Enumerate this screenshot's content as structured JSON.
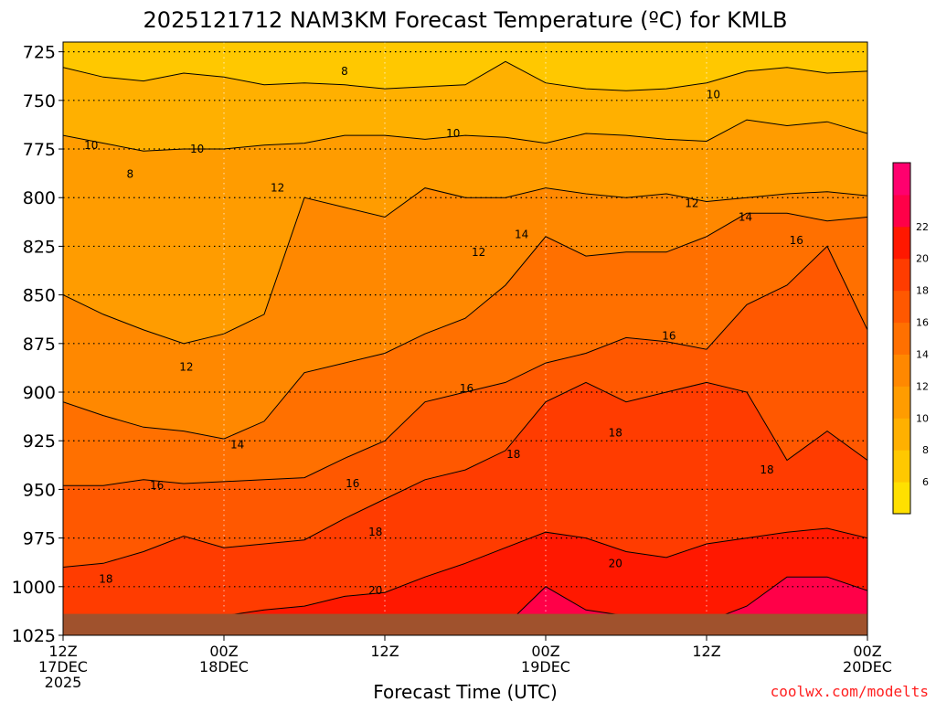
{
  "chart_data": {
    "type": "heatmap",
    "title": "2025121712 NAM3KM Forecast Temperature (ºC) for KMLB",
    "xlabel": "Forecast Time (UTC)",
    "ylabel": "",
    "credit": "coolwx.com/modelts",
    "y_ticks": [
      725,
      750,
      775,
      800,
      825,
      850,
      875,
      900,
      925,
      950,
      975,
      1000,
      1025
    ],
    "ylim": [
      1025,
      720
    ],
    "x_hours": [
      0,
      60
    ],
    "x_ticks": [
      {
        "hour": 0,
        "l1": "12Z",
        "l2": "17DEC",
        "l3": "2025"
      },
      {
        "hour": 12,
        "l1": "00Z",
        "l2": "18DEC",
        "l3": ""
      },
      {
        "hour": 24,
        "l1": "12Z",
        "l2": "",
        "l3": ""
      },
      {
        "hour": 36,
        "l1": "00Z",
        "l2": "19DEC",
        "l3": ""
      },
      {
        "hour": 48,
        "l1": "12Z",
        "l2": "",
        "l3": ""
      },
      {
        "hour": 60,
        "l1": "00Z",
        "l2": "20DEC",
        "l3": ""
      }
    ],
    "colorbar": {
      "levels": [
        4,
        6,
        8,
        10,
        12,
        14,
        16,
        18,
        20,
        22,
        24
      ],
      "labels": [
        6,
        8,
        10,
        12,
        14,
        16,
        18,
        20,
        22
      ],
      "colors": [
        "#ffe000",
        "#ffc800",
        "#ffb000",
        "#ff9c00",
        "#ff8800",
        "#ff7000",
        "#ff5800",
        "#ff3c00",
        "#ff1800",
        "#ff0048",
        "#ff006e"
      ]
    },
    "surface_color": "#a0522d",
    "surface_pressure": 1014,
    "series": [
      {
        "name": "8",
        "x": [
          0,
          3,
          6,
          9,
          12,
          15,
          18,
          21,
          24,
          27,
          30,
          33,
          36,
          39,
          42,
          45,
          48,
          51,
          54,
          57,
          60
        ],
        "y": [
          733,
          738,
          740,
          736,
          738,
          742,
          741,
          742,
          744,
          743,
          742,
          730,
          741,
          744,
          745,
          744,
          741,
          735,
          733,
          736,
          735
        ]
      },
      {
        "name": "10",
        "x": [
          0,
          3,
          6,
          9,
          12,
          15,
          18,
          21,
          24,
          27,
          30,
          33,
          36,
          39,
          42,
          45,
          48,
          51,
          54,
          57,
          60
        ],
        "y": [
          768,
          772,
          776,
          775,
          775,
          773,
          772,
          768,
          768,
          770,
          768,
          769,
          772,
          767,
          768,
          770,
          771,
          760,
          763,
          761,
          767
        ]
      },
      {
        "name": "12",
        "x": [
          0,
          3,
          6,
          9,
          12,
          15,
          18,
          21,
          24,
          27,
          30,
          33,
          36,
          39,
          42,
          45,
          48,
          51,
          54,
          57,
          60
        ],
        "y": [
          850,
          860,
          868,
          875,
          870,
          860,
          800,
          805,
          810,
          795,
          800,
          800,
          795,
          798,
          800,
          798,
          802,
          800,
          798,
          797,
          799
        ]
      },
      {
        "name": "14",
        "x": [
          0,
          3,
          6,
          9,
          12,
          15,
          18,
          21,
          24,
          27,
          30,
          33,
          36,
          39,
          42,
          45,
          48,
          51,
          54,
          57,
          60
        ],
        "y": [
          905,
          912,
          918,
          920,
          924,
          915,
          890,
          885,
          880,
          870,
          862,
          845,
          820,
          830,
          828,
          828,
          820,
          808,
          808,
          812,
          810
        ]
      },
      {
        "name": "16",
        "x": [
          0,
          3,
          6,
          9,
          12,
          15,
          18,
          21,
          24,
          27,
          30,
          33,
          36,
          39,
          42,
          45,
          48,
          51,
          54,
          57,
          60
        ],
        "y": [
          948,
          948,
          945,
          947,
          946,
          945,
          944,
          934,
          925,
          905,
          900,
          895,
          885,
          880,
          872,
          874,
          878,
          855,
          845,
          825,
          868
        ]
      },
      {
        "name": "18",
        "x": [
          0,
          3,
          6,
          9,
          12,
          15,
          18,
          21,
          24,
          27,
          30,
          33,
          36,
          39,
          42,
          45,
          48,
          51,
          54,
          57,
          60
        ],
        "y": [
          990,
          988,
          982,
          974,
          980,
          978,
          976,
          965,
          955,
          945,
          940,
          930,
          905,
          895,
          905,
          900,
          895,
          900,
          935,
          920,
          935
        ]
      },
      {
        "name": "20",
        "x": [
          0,
          3,
          6,
          9,
          12,
          15,
          18,
          21,
          24,
          27,
          30,
          33,
          36,
          39,
          42,
          45,
          48,
          51,
          54,
          57,
          60
        ],
        "y": [
          1018,
          1016,
          1015,
          1015,
          1015,
          1012,
          1010,
          1005,
          1003,
          995,
          988,
          980,
          972,
          975,
          982,
          985,
          978,
          975,
          972,
          970,
          975
        ]
      },
      {
        "name": "22",
        "x": [
          0,
          3,
          6,
          9,
          12,
          15,
          18,
          21,
          24,
          27,
          30,
          33,
          36,
          39,
          42,
          45,
          48,
          51,
          54,
          57,
          60
        ],
        "y": [
          1025,
          1025,
          1025,
          1025,
          1025,
          1025,
          1025,
          1025,
          1025,
          1025,
          1025,
          1020,
          1000,
          1012,
          1015,
          1018,
          1018,
          1010,
          995,
          995,
          1002
        ]
      }
    ],
    "contour_labels": [
      {
        "text": "8",
        "x": 21.0,
        "y": 735
      },
      {
        "text": "10",
        "x": 48.5,
        "y": 747
      },
      {
        "text": "10",
        "x": 2.1,
        "y": 773
      },
      {
        "text": "10",
        "x": 10.0,
        "y": 775
      },
      {
        "text": "10",
        "x": 29.1,
        "y": 767
      },
      {
        "text": "8",
        "x": 5.0,
        "y": 788
      },
      {
        "text": "12",
        "x": 16.0,
        "y": 795
      },
      {
        "text": "12",
        "x": 46.9,
        "y": 803
      },
      {
        "text": "14",
        "x": 50.9,
        "y": 810
      },
      {
        "text": "12",
        "x": 31.0,
        "y": 828
      },
      {
        "text": "14",
        "x": 34.2,
        "y": 819
      },
      {
        "text": "16",
        "x": 54.7,
        "y": 822
      },
      {
        "text": "16",
        "x": 45.2,
        "y": 871
      },
      {
        "text": "12",
        "x": 9.2,
        "y": 887
      },
      {
        "text": "16",
        "x": 30.1,
        "y": 898
      },
      {
        "text": "18",
        "x": 41.2,
        "y": 921
      },
      {
        "text": "14",
        "x": 13.0,
        "y": 927
      },
      {
        "text": "18",
        "x": 33.6,
        "y": 932
      },
      {
        "text": "16",
        "x": 7.0,
        "y": 948
      },
      {
        "text": "16",
        "x": 21.6,
        "y": 947
      },
      {
        "text": "18",
        "x": 52.5,
        "y": 940
      },
      {
        "text": "18",
        "x": 23.3,
        "y": 972
      },
      {
        "text": "20",
        "x": 41.2,
        "y": 988
      },
      {
        "text": "18",
        "x": 3.2,
        "y": 996
      },
      {
        "text": "20",
        "x": 23.3,
        "y": 1002
      }
    ]
  }
}
